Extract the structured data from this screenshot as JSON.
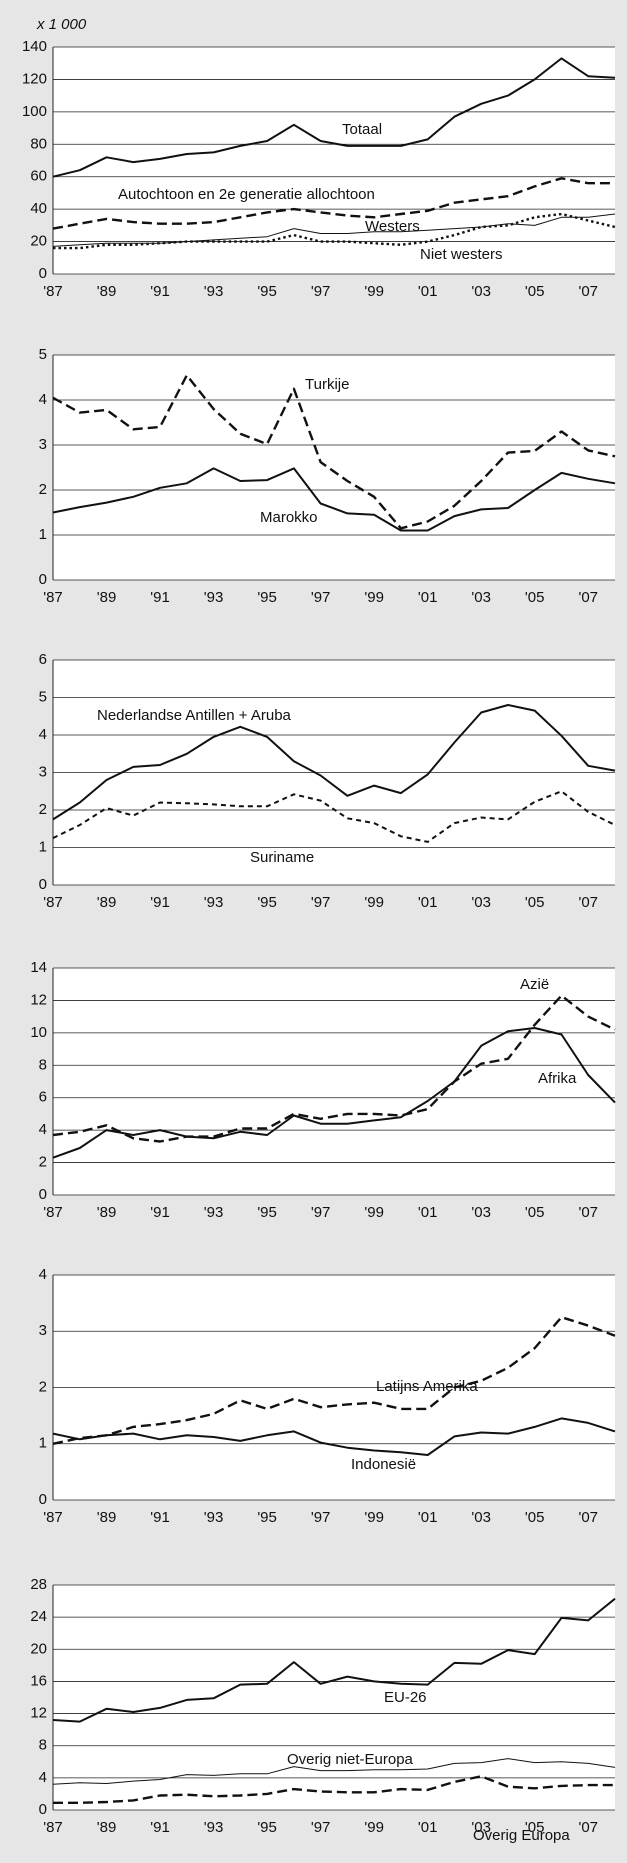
{
  "chart_data": [
    {
      "type": "line",
      "subtitle": "x 1 000",
      "categories": [
        "'87",
        null,
        "'89",
        null,
        "'91",
        null,
        "'93",
        null,
        "'95",
        null,
        "'97",
        null,
        "'99",
        null,
        "'01",
        null,
        "'03",
        null,
        "'05",
        null,
        "'07",
        null
      ],
      "ylim": [
        0,
        140
      ],
      "yticks": [
        0,
        20,
        40,
        60,
        80,
        100,
        120,
        140
      ],
      "grid": true,
      "series": [
        {
          "name": "Totaal",
          "color": "#111111",
          "style": "solid",
          "values": [
            60,
            64,
            72,
            69,
            71,
            74,
            75,
            79,
            82,
            92,
            82,
            79,
            79,
            79,
            83,
            97,
            105,
            110,
            120,
            133,
            122,
            121
          ]
        },
        {
          "name": "Autochtoon en 2e generatie allochtoon",
          "color": "#111111",
          "style": "dashed",
          "values": [
            28,
            31,
            34,
            32,
            31,
            31,
            32,
            35,
            38,
            40,
            38,
            36,
            35,
            37,
            39,
            44,
            46,
            48,
            54,
            59,
            56,
            56
          ]
        },
        {
          "name": "Westers",
          "color": "#111111",
          "style": "thin",
          "values": [
            17,
            18,
            19,
            19,
            19,
            20,
            21,
            22,
            23,
            28,
            25,
            25,
            26,
            26,
            27,
            28,
            29,
            31,
            30,
            35,
            35,
            37
          ]
        },
        {
          "name": "Niet westers",
          "color": "#111111",
          "style": "dotted",
          "values": [
            16,
            16,
            18,
            18,
            19,
            20,
            20,
            20,
            20,
            24,
            20,
            20,
            19,
            18,
            20,
            24,
            29,
            30,
            35,
            37,
            33,
            29
          ]
        }
      ]
    },
    {
      "type": "line",
      "categories": [
        "'87",
        null,
        "'89",
        null,
        "'91",
        null,
        "'93",
        null,
        "'95",
        null,
        "'97",
        null,
        "'99",
        null,
        "'01",
        null,
        "'03",
        null,
        "'05",
        null,
        "'07",
        null
      ],
      "ylim": [
        0,
        5
      ],
      "yticks": [
        0,
        1,
        2,
        3,
        4,
        5
      ],
      "grid": true,
      "series": [
        {
          "name": "Turkije",
          "color": "#111111",
          "style": "dashed",
          "values": [
            4.05,
            3.72,
            3.78,
            3.35,
            3.4,
            4.55,
            3.8,
            3.25,
            3.02,
            4.25,
            2.62,
            2.2,
            1.85,
            1.15,
            1.3,
            1.65,
            2.2,
            2.83,
            2.87,
            3.3,
            2.88,
            2.75
          ]
        },
        {
          "name": "Marokko",
          "color": "#111111",
          "style": "solid",
          "values": [
            1.5,
            1.62,
            1.72,
            1.85,
            2.05,
            2.15,
            2.48,
            2.2,
            2.22,
            2.48,
            1.7,
            1.48,
            1.45,
            1.1,
            1.1,
            1.42,
            1.57,
            1.6,
            2.0,
            2.38,
            2.25,
            2.15
          ]
        }
      ]
    },
    {
      "type": "line",
      "categories": [
        "'87",
        null,
        "'89",
        null,
        "'91",
        null,
        "'93",
        null,
        "'95",
        null,
        "'97",
        null,
        "'99",
        null,
        "'01",
        null,
        "'03",
        null,
        "'05",
        null,
        "'07",
        null
      ],
      "ylim": [
        0,
        6
      ],
      "yticks": [
        0,
        1,
        2,
        3,
        4,
        5,
        6
      ],
      "grid": true,
      "series": [
        {
          "name": "Nederlandse Antillen + Aruba",
          "color": "#111111",
          "style": "solid",
          "values": [
            1.75,
            2.2,
            2.8,
            3.15,
            3.2,
            3.5,
            3.95,
            4.22,
            3.95,
            3.3,
            2.92,
            2.38,
            2.65,
            2.45,
            2.95,
            3.8,
            4.6,
            4.8,
            4.65,
            3.98,
            3.18,
            3.05
          ]
        },
        {
          "name": "Suriname",
          "color": "#111111",
          "style": "shortdash",
          "values": [
            1.25,
            1.6,
            2.05,
            1.85,
            2.2,
            2.18,
            2.15,
            2.1,
            2.1,
            2.42,
            2.25,
            1.78,
            1.65,
            1.3,
            1.15,
            1.65,
            1.8,
            1.75,
            2.22,
            2.5,
            1.95,
            1.6
          ]
        }
      ]
    },
    {
      "type": "line",
      "categories": [
        "'87",
        null,
        "'89",
        null,
        "'91",
        null,
        "'93",
        null,
        "'95",
        null,
        "'97",
        null,
        "'99",
        null,
        "'01",
        null,
        "'03",
        null,
        "'05",
        null,
        "'07",
        null
      ],
      "ylim": [
        0,
        14
      ],
      "yticks": [
        0,
        2,
        4,
        6,
        8,
        10,
        12,
        14
      ],
      "grid": true,
      "series": [
        {
          "name": "Azië",
          "color": "#111111",
          "style": "dashed",
          "values": [
            3.7,
            3.9,
            4.3,
            3.5,
            3.3,
            3.6,
            3.6,
            4.1,
            4.1,
            5.0,
            4.7,
            5.0,
            5.0,
            4.9,
            5.3,
            7.0,
            8.1,
            8.4,
            10.5,
            12.3,
            11.0,
            10.2
          ]
        },
        {
          "name": "Afrika",
          "color": "#111111",
          "style": "solid",
          "values": [
            2.3,
            2.9,
            4.0,
            3.7,
            4.0,
            3.6,
            3.5,
            3.9,
            3.7,
            4.9,
            4.4,
            4.4,
            4.6,
            4.8,
            5.8,
            7.0,
            9.2,
            10.1,
            10.3,
            9.9,
            7.4,
            5.7
          ]
        }
      ]
    },
    {
      "type": "line",
      "categories": [
        "'87",
        null,
        "'89",
        null,
        "'91",
        null,
        "'93",
        null,
        "'95",
        null,
        "'97",
        null,
        "'99",
        null,
        "'01",
        null,
        "'03",
        null,
        "'05",
        null,
        "'07",
        null
      ],
      "ylim": [
        0,
        4
      ],
      "yticks": [
        0,
        1,
        2,
        3,
        4
      ],
      "grid": true,
      "series": [
        {
          "name": "Latijns Amerika",
          "color": "#111111",
          "style": "dashed",
          "values": [
            1.0,
            1.1,
            1.15,
            1.3,
            1.35,
            1.42,
            1.53,
            1.77,
            1.62,
            1.8,
            1.65,
            1.7,
            1.73,
            1.62,
            1.62,
            2.0,
            2.12,
            2.35,
            2.7,
            3.25,
            3.1,
            2.92
          ]
        },
        {
          "name": "Indonesië",
          "color": "#111111",
          "style": "solid",
          "values": [
            1.18,
            1.08,
            1.15,
            1.18,
            1.08,
            1.15,
            1.12,
            1.05,
            1.15,
            1.22,
            1.02,
            0.93,
            0.88,
            0.85,
            0.8,
            1.13,
            1.2,
            1.18,
            1.3,
            1.45,
            1.37,
            1.22
          ]
        }
      ]
    },
    {
      "type": "line",
      "categories": [
        "'87",
        null,
        "'89",
        null,
        "'91",
        null,
        "'93",
        null,
        "'95",
        null,
        "'97",
        null,
        "'99",
        null,
        "'01",
        null,
        "'03",
        null,
        "'05",
        null,
        "'07",
        null
      ],
      "ylim": [
        0,
        28
      ],
      "yticks": [
        0,
        4,
        8,
        12,
        16,
        20,
        24,
        28
      ],
      "grid": true,
      "series": [
        {
          "name": "EU-26",
          "color": "#111111",
          "style": "solid",
          "values": [
            11.2,
            11.0,
            12.6,
            12.2,
            12.7,
            13.7,
            13.9,
            15.6,
            15.7,
            18.4,
            15.7,
            16.6,
            16.0,
            15.7,
            15.6,
            18.3,
            18.2,
            19.9,
            19.4,
            23.9,
            23.6,
            26.3
          ]
        },
        {
          "name": "Overig niet-Europa",
          "color": "#111111",
          "style": "thin",
          "values": [
            3.2,
            3.4,
            3.3,
            3.6,
            3.8,
            4.4,
            4.3,
            4.5,
            4.5,
            5.4,
            4.9,
            4.9,
            5.0,
            5.0,
            5.1,
            5.8,
            5.9,
            6.4,
            5.9,
            6.0,
            5.8,
            5.3
          ]
        },
        {
          "name": "Overig Europa",
          "color": "#111111",
          "style": "dashed",
          "values": [
            0.9,
            0.9,
            1.0,
            1.2,
            1.8,
            1.9,
            1.7,
            1.8,
            2.0,
            2.6,
            2.3,
            2.2,
            2.2,
            2.6,
            2.5,
            3.5,
            4.2,
            2.9,
            2.7,
            3.0,
            3.1,
            3.1
          ]
        }
      ]
    }
  ]
}
